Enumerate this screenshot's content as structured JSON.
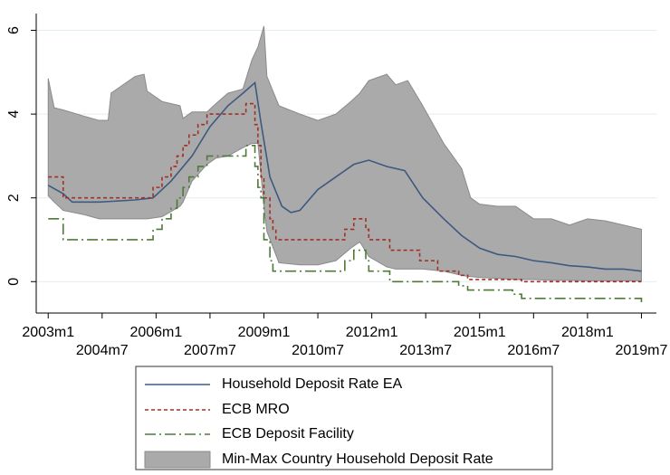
{
  "chart_data": {
    "type": "line",
    "xlim": [
      "2002m9",
      "2019m12"
    ],
    "xticks": [
      "2003m1",
      "2004m7",
      "2006m1",
      "2007m7",
      "2009m1",
      "2010m7",
      "2012m1",
      "2013m7",
      "2015m1",
      "2016m7",
      "2018m1",
      "2019m7"
    ],
    "ylim": [
      -0.75,
      6.4
    ],
    "yticks": [
      0,
      2,
      4,
      6
    ],
    "grid": true,
    "band": {
      "name": "Min-Max Country Household Deposit Rate",
      "color": "#aaaaaa",
      "x": [
        "2003m1",
        "2003m3",
        "2003m6",
        "2004m1",
        "2004m6",
        "2004m9",
        "2004m10",
        "2005m1",
        "2005m6",
        "2005m9",
        "2005m10",
        "2006m3",
        "2006m9",
        "2006m10",
        "2007m1",
        "2007m6",
        "2007m9",
        "2008m1",
        "2008m6",
        "2008m9",
        "2008m11",
        "2009m1",
        "2009m2",
        "2009m6",
        "2010m1",
        "2010m7",
        "2011m1",
        "2011m6",
        "2011m9",
        "2011m12",
        "2012m6",
        "2012m9",
        "2013m1",
        "2013m6",
        "2014m1",
        "2014m7",
        "2014m10",
        "2015m1",
        "2015m7",
        "2016m1",
        "2016m7",
        "2017m1",
        "2017m7",
        "2018m1",
        "2018m7",
        "2019m1",
        "2019m7"
      ],
      "upper": [
        4.85,
        4.15,
        4.1,
        3.95,
        3.85,
        3.85,
        4.5,
        4.65,
        4.9,
        4.95,
        4.55,
        4.3,
        4.2,
        3.9,
        4.05,
        4.05,
        4.25,
        4.5,
        4.6,
        5.3,
        5.6,
        6.1,
        4.9,
        4.2,
        4.0,
        3.85,
        4.0,
        4.3,
        4.5,
        4.8,
        4.95,
        4.7,
        4.8,
        4.2,
        3.3,
        2.7,
        2.0,
        1.85,
        1.8,
        1.8,
        1.5,
        1.5,
        1.35,
        1.5,
        1.45,
        1.35,
        1.25
      ],
      "lower": [
        2.05,
        1.9,
        1.7,
        1.6,
        1.5,
        1.5,
        1.5,
        1.5,
        1.5,
        1.5,
        1.5,
        1.55,
        1.8,
        1.9,
        2.4,
        2.8,
        2.95,
        3.0,
        3.2,
        3.3,
        3.3,
        1.8,
        1.2,
        0.45,
        0.4,
        0.4,
        0.5,
        0.8,
        0.95,
        0.6,
        0.35,
        0.3,
        0.3,
        0.3,
        0.25,
        0.15,
        0.12,
        0.1,
        0.08,
        0.05,
        0.05,
        0.03,
        0.03,
        0.02,
        0.02,
        0.02,
        0.02
      ]
    },
    "series": [
      {
        "name": "Household Deposit Rate EA",
        "color": "#3d5a80",
        "dash": "none",
        "step": false,
        "x": [
          "2003m1",
          "2003m6",
          "2003m9",
          "2004m6",
          "2005m6",
          "2005m12",
          "2006m6",
          "2007m1",
          "2007m7",
          "2008m1",
          "2008m6",
          "2008m10",
          "2008m12",
          "2009m3",
          "2009m7",
          "2009m10",
          "2010m1",
          "2010m7",
          "2011m1",
          "2011m7",
          "2011m12",
          "2012m6",
          "2012m12",
          "2013m6",
          "2014m1",
          "2014m7",
          "2015m1",
          "2015m7",
          "2016m1",
          "2016m7",
          "2017m1",
          "2017m7",
          "2018m1",
          "2018m7",
          "2019m1",
          "2019m7"
        ],
        "values": [
          2.3,
          2.1,
          1.9,
          1.9,
          1.95,
          2.0,
          2.4,
          3.0,
          3.7,
          4.2,
          4.5,
          4.75,
          3.8,
          2.5,
          1.8,
          1.65,
          1.7,
          2.2,
          2.5,
          2.8,
          2.9,
          2.75,
          2.65,
          2.0,
          1.5,
          1.1,
          0.8,
          0.65,
          0.6,
          0.5,
          0.45,
          0.38,
          0.35,
          0.3,
          0.3,
          0.25
        ]
      },
      {
        "name": "ECB MRO",
        "color": "#a03028",
        "dash": "4 3",
        "step": true,
        "x": [
          "2003m1",
          "2003m6",
          "2005m12",
          "2006m3",
          "2006m6",
          "2006m8",
          "2006m10",
          "2006m12",
          "2007m3",
          "2007m6",
          "2008m7",
          "2008m10",
          "2008m11",
          "2008m12",
          "2009m1",
          "2009m3",
          "2009m4",
          "2009m5",
          "2011m4",
          "2011m7",
          "2011m11",
          "2011m12",
          "2012m7",
          "2013m5",
          "2013m11",
          "2014m6",
          "2014m9",
          "2016m3",
          "2019m7"
        ],
        "values": [
          2.5,
          2.0,
          2.25,
          2.5,
          2.75,
          3.0,
          3.25,
          3.5,
          3.75,
          4.0,
          4.25,
          3.75,
          3.25,
          2.5,
          2.0,
          1.5,
          1.25,
          1.0,
          1.25,
          1.5,
          1.25,
          1.0,
          0.75,
          0.5,
          0.25,
          0.15,
          0.05,
          0.0,
          0.0
        ]
      },
      {
        "name": "ECB Deposit Facility",
        "color": "#4e7a38",
        "dash": "12 4 2 4",
        "step": true,
        "x": [
          "2003m1",
          "2003m6",
          "2005m12",
          "2006m3",
          "2006m6",
          "2006m8",
          "2006m10",
          "2006m12",
          "2007m3",
          "2007m6",
          "2008m7",
          "2008m10",
          "2008m11",
          "2008m12",
          "2009m1",
          "2009m3",
          "2009m4",
          "2011m4",
          "2011m7",
          "2011m11",
          "2011m12",
          "2012m7",
          "2014m6",
          "2014m9",
          "2015m12",
          "2016m3",
          "2019m6",
          "2019m7"
        ],
        "values": [
          1.5,
          1.0,
          1.25,
          1.5,
          1.75,
          2.0,
          2.25,
          2.5,
          2.75,
          3.0,
          3.25,
          2.75,
          2.25,
          2.0,
          1.0,
          0.5,
          0.25,
          0.5,
          0.75,
          0.5,
          0.25,
          0.0,
          -0.1,
          -0.2,
          -0.3,
          -0.4,
          -0.4,
          -0.5
        ]
      }
    ]
  }
}
